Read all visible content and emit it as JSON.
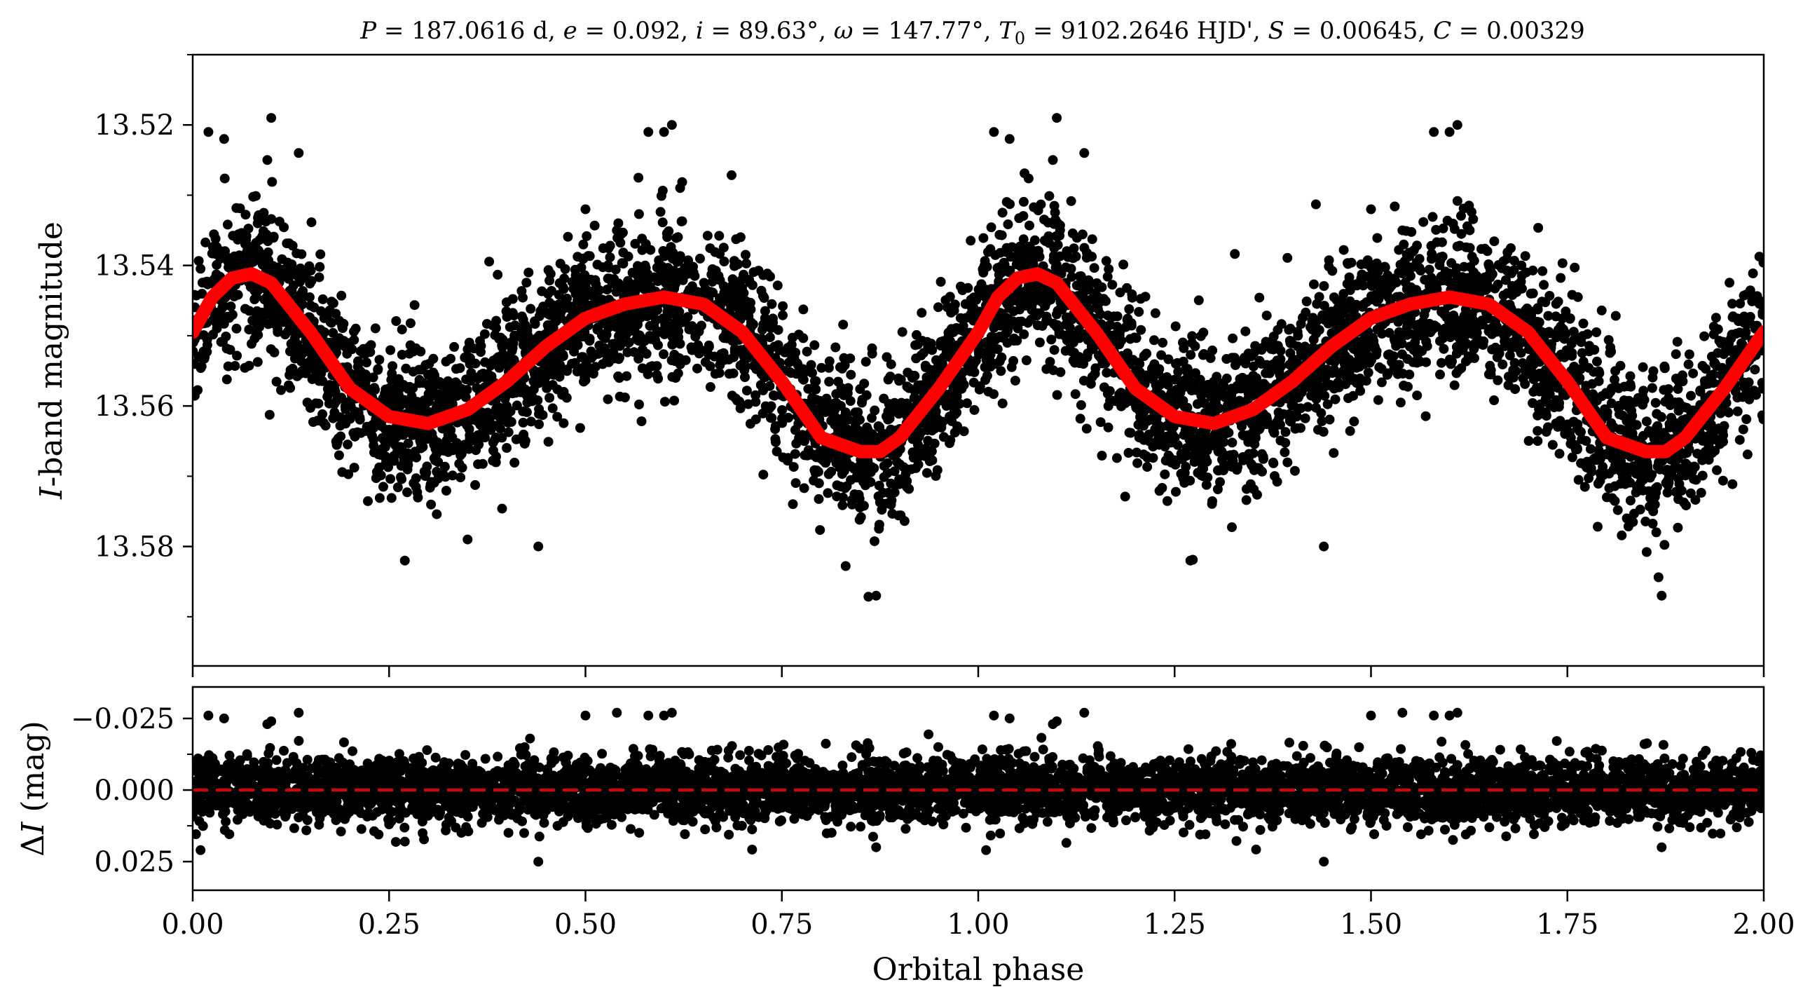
{
  "chart_data": [
    {
      "type": "scatter",
      "title": "P = 187.0616 d, e = 0.092, i = 89.63°, ω = 147.77°, T0 = 9102.2646 HJD', S = 0.00645, C = 0.00329",
      "title_parts": {
        "p_sym": "P",
        "p_val": " = 187.0616 d, ",
        "e_sym": "e",
        "e_val": " = 0.092, ",
        "i_sym": "i",
        "i_val": " = 89.63°, ",
        "w_sym": "ω",
        "w_val": " = 147.77°, ",
        "t_sym": "T",
        "t_sub": "0",
        "t_val": " = 9102.2646 HJD', ",
        "s_sym": "S",
        "s_val": " = 0.00645, ",
        "c_sym": "C",
        "c_val": " = 0.00329"
      },
      "ylabel": {
        "italic": "I",
        "rest": "-band magnitude"
      },
      "xlabel": "",
      "xlim": [
        0.0,
        2.0
      ],
      "ylim": [
        13.597,
        13.51
      ],
      "y_inverted": true,
      "yticks": [
        13.52,
        13.54,
        13.56,
        13.58
      ],
      "ytick_labels": [
        "13.52",
        "13.54",
        "13.56",
        "13.58"
      ],
      "xticks": [
        0.0,
        0.25,
        0.5,
        0.75,
        1.0,
        1.25,
        1.5,
        1.75,
        2.0
      ],
      "grid": false,
      "series": [
        {
          "kind": "points",
          "color": "#000000",
          "n_points_approx": 10000,
          "scatter_sigma_mag": 0.0055,
          "outliers_x": [
            0.02,
            0.04,
            0.1,
            0.095,
            0.135,
            0.5,
            0.54,
            0.58,
            0.6,
            0.61,
            0.44,
            0.27,
            0.35,
            0.87,
            1.02,
            1.04,
            1.1,
            1.095,
            1.135,
            1.5,
            1.54,
            1.58,
            1.6,
            1.61,
            1.27,
            1.44,
            1.87
          ],
          "outliers_y": [
            13.521,
            13.522,
            13.519,
            13.525,
            13.524,
            13.532,
            13.535,
            13.521,
            13.521,
            13.52,
            13.58,
            13.582,
            13.579,
            13.587,
            13.521,
            13.522,
            13.519,
            13.525,
            13.524,
            13.532,
            13.535,
            13.521,
            13.521,
            13.52,
            13.582,
            13.58,
            13.587
          ]
        },
        {
          "kind": "model",
          "color": "#ff0000",
          "x": [
            0.0,
            0.025,
            0.05,
            0.075,
            0.1,
            0.15,
            0.2,
            0.25,
            0.3,
            0.35,
            0.4,
            0.45,
            0.5,
            0.55,
            0.6,
            0.65,
            0.7,
            0.75,
            0.8,
            0.85,
            0.875,
            0.9,
            0.95,
            1.0,
            1.025,
            1.05,
            1.075,
            1.1,
            1.15,
            1.2,
            1.25,
            1.3,
            1.35,
            1.4,
            1.45,
            1.5,
            1.55,
            1.6,
            1.65,
            1.7,
            1.75,
            1.8,
            1.85,
            1.875,
            1.9,
            1.95,
            2.0
          ],
          "values": [
            13.5495,
            13.5445,
            13.5418,
            13.5412,
            13.5425,
            13.5495,
            13.5575,
            13.5615,
            13.5625,
            13.5605,
            13.5565,
            13.5515,
            13.5475,
            13.5455,
            13.5445,
            13.5455,
            13.5495,
            13.5565,
            13.5645,
            13.5665,
            13.5665,
            13.5645,
            13.5575,
            13.5495,
            13.5445,
            13.5418,
            13.5412,
            13.5425,
            13.5495,
            13.5575,
            13.5615,
            13.5625,
            13.5605,
            13.5565,
            13.5515,
            13.5475,
            13.5455,
            13.5445,
            13.5455,
            13.5495,
            13.5565,
            13.5645,
            13.5665,
            13.5665,
            13.5645,
            13.5575,
            13.5495
          ]
        }
      ]
    },
    {
      "type": "scatter",
      "ylabel": {
        "prefix": "Δ",
        "italic": "I",
        "rest": " (mag)"
      },
      "xlabel": "Orbital phase",
      "xlim": [
        0.0,
        2.0
      ],
      "ylim": [
        0.035,
        -0.036
      ],
      "y_inverted": true,
      "yticks": [
        -0.025,
        0.0,
        0.025
      ],
      "ytick_labels": [
        "−0.025",
        "0.000",
        "0.025"
      ],
      "xticks": [
        0.0,
        0.25,
        0.5,
        0.75,
        1.0,
        1.25,
        1.5,
        1.75,
        2.0
      ],
      "xtick_labels": [
        "0.00",
        "0.25",
        "0.50",
        "0.75",
        "1.00",
        "1.25",
        "1.50",
        "1.75",
        "2.00"
      ],
      "grid": false,
      "series": [
        {
          "kind": "points",
          "color": "#000000",
          "n_points_approx": 10000,
          "scatter_sigma_mag": 0.0055,
          "outliers_x": [
            0.02,
            0.04,
            0.1,
            0.095,
            0.135,
            0.5,
            0.54,
            0.58,
            0.6,
            0.61,
            0.44,
            0.27,
            0.87,
            1.02,
            1.04,
            1.1,
            1.095,
            1.135,
            1.5,
            1.54,
            1.58,
            1.6,
            1.61,
            1.44,
            1.87,
            0.01,
            1.01
          ],
          "outliers_y": [
            -0.026,
            -0.025,
            -0.024,
            -0.023,
            -0.027,
            -0.026,
            -0.027,
            -0.026,
            -0.026,
            -0.027,
            0.025,
            0.018,
            0.02,
            -0.026,
            -0.025,
            -0.024,
            -0.023,
            -0.027,
            -0.026,
            -0.027,
            -0.026,
            -0.026,
            -0.027,
            0.025,
            0.02,
            0.021,
            0.021
          ]
        },
        {
          "kind": "reference_line",
          "color": "#dd0000",
          "style": "dashed",
          "value": 0.0
        }
      ]
    }
  ]
}
